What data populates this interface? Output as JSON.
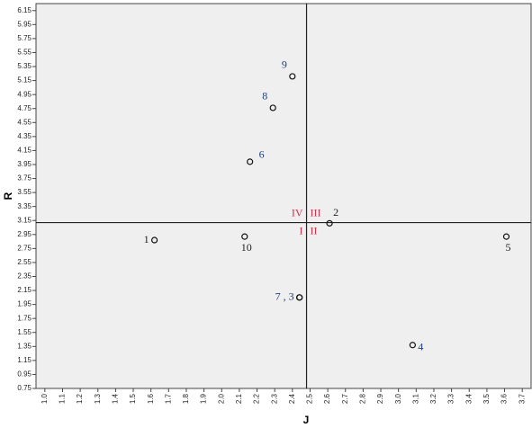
{
  "chart_data": {
    "type": "scatter",
    "x_label": "J",
    "y_label": "R",
    "x": [
      1.62,
      2.61,
      2.44,
      3.08,
      3.61,
      2.16,
      2.44,
      2.29,
      2.4,
      2.13
    ],
    "values": [
      2.87,
      3.11,
      2.05,
      1.37,
      2.92,
      3.99,
      2.05,
      4.76,
      5.21,
      2.92
    ],
    "point_labels": [
      "1",
      "2",
      null,
      "4",
      "5",
      "6",
      "7 , 3",
      "8",
      "9",
      "10"
    ],
    "point_label_colors": [
      "#222222",
      "#222222",
      "#1f3f7a",
      "#1f3f7a",
      "#222222",
      "#1f3f7a",
      "#1f3f7a",
      "#1f3f7a",
      "#1f3f7a",
      "#222222"
    ],
    "reference_lines": {
      "x": 2.48,
      "y": 3.12
    },
    "quadrant_labels": [
      "IV",
      "III",
      "I",
      "II"
    ],
    "quadrant_color": "#d0304a",
    "xlim": [
      0.95,
      3.75
    ],
    "ylim": [
      0.75,
      6.25
    ],
    "xticks": [
      {
        "value": 1.0,
        "label": "1.0"
      },
      1.1,
      1.2,
      1.3,
      1.4,
      1.5,
      1.6,
      1.7,
      1.8,
      1.9,
      {
        "value": 2.0,
        "label": "2.0"
      },
      2.1,
      2.2,
      2.3,
      2.4,
      2.5,
      2.6,
      2.7,
      2.8,
      2.9,
      {
        "value": 3.0,
        "label": "3.0"
      },
      3.1,
      3.2,
      3.3,
      3.4,
      3.5,
      3.6,
      3.7
    ],
    "yticks": [
      0.75,
      0.95,
      1.15,
      1.35,
      1.55,
      1.75,
      1.95,
      2.15,
      2.35,
      2.55,
      2.75,
      2.95,
      3.15,
      3.35,
      3.55,
      3.75,
      3.95,
      4.15,
      4.35,
      4.55,
      4.75,
      4.95,
      5.15,
      5.35,
      5.55,
      5.75,
      5.95,
      6.15
    ]
  }
}
